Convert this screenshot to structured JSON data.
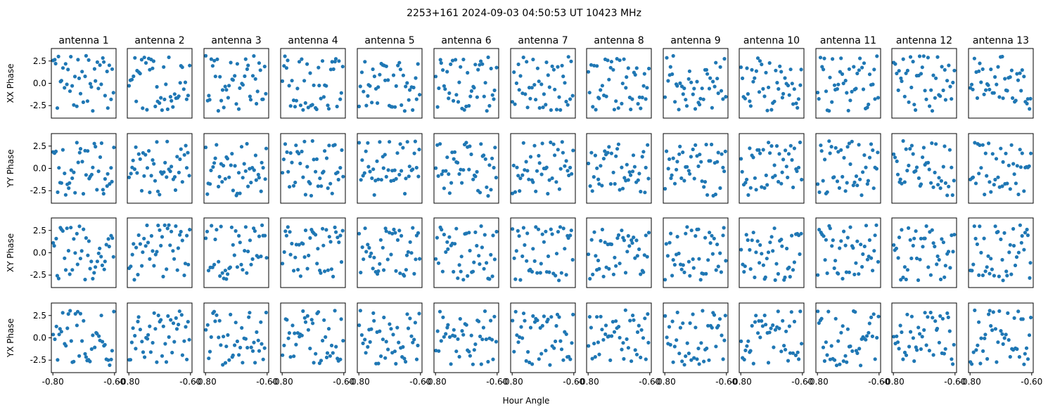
{
  "title": "2253+161  2024-09-03 04:50:53 UT  10423 MHz",
  "xlabel": "Hour Angle",
  "antennas": [
    "antenna 1",
    "antenna 2",
    "antenna 3",
    "antenna 4",
    "antenna 5",
    "antenna 6",
    "antenna 7",
    "antenna 8",
    "antenna 9",
    "antenna 10",
    "antenna 11",
    "antenna 12",
    "antenna 13"
  ],
  "row_labels": [
    "XX Phase",
    "YY Phase",
    "XY Phase",
    "YX Phase"
  ],
  "xticks": [
    {
      "value": -0.8,
      "label": "-0.80"
    },
    {
      "value": -0.6,
      "label": "-0.60"
    }
  ],
  "x_last_right_label": "-0.60",
  "yticks": [
    {
      "value": 2.5,
      "label": "2.5"
    },
    {
      "value": 0.0,
      "label": "0.0"
    },
    {
      "value": -2.5,
      "label": "-2.5"
    }
  ],
  "colors": {
    "marker": "#1f77b4",
    "axes": "#000000"
  },
  "chart_data": {
    "type": "scatter",
    "grid": false,
    "xlim": [
      -0.805,
      -0.595
    ],
    "ylim": [
      -3.9,
      3.9
    ],
    "points_per_panel": 45,
    "series_note": "52 panels (4 polarizations x 13 antennas), each a phase-vs-hour-angle scatter from -0.80 to -0.60"
  }
}
